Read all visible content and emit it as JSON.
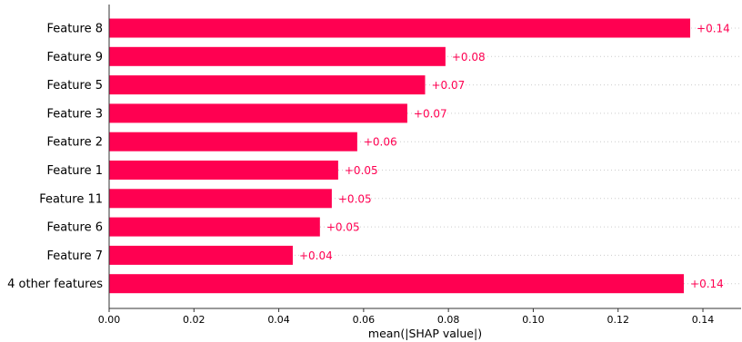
{
  "chart_data": {
    "type": "bar",
    "orientation": "horizontal",
    "categories": [
      "Feature 8",
      "Feature 9",
      "Feature 5",
      "Feature 3",
      "Feature 2",
      "Feature 1",
      "Feature 11",
      "Feature 6",
      "Feature 7",
      "4 other features"
    ],
    "values": [
      0.137,
      0.0793,
      0.0745,
      0.0703,
      0.0585,
      0.054,
      0.0525,
      0.0497,
      0.0433,
      0.1355
    ],
    "value_labels": [
      "+0.14",
      "+0.08",
      "+0.07",
      "+0.07",
      "+0.06",
      "+0.05",
      "+0.05",
      "+0.05",
      "+0.04",
      "+0.14"
    ],
    "xlabel": "mean(|SHAP value|)",
    "ylabel": "",
    "title": "",
    "xlim": [
      0,
      0.149
    ],
    "x_ticks": [
      "0.00",
      "0.02",
      "0.04",
      "0.06",
      "0.08",
      "0.10",
      "0.12",
      "0.14"
    ],
    "x_tick_values": [
      0,
      0.02,
      0.04,
      0.06,
      0.08,
      0.1,
      0.12,
      0.14
    ],
    "grid": "dotted horizontal guide lines per row",
    "legend": "none",
    "colors": {
      "bar": "#ff0051",
      "value_label": "#ff0051",
      "grid": "#cccccc",
      "axis": "#333333"
    }
  }
}
